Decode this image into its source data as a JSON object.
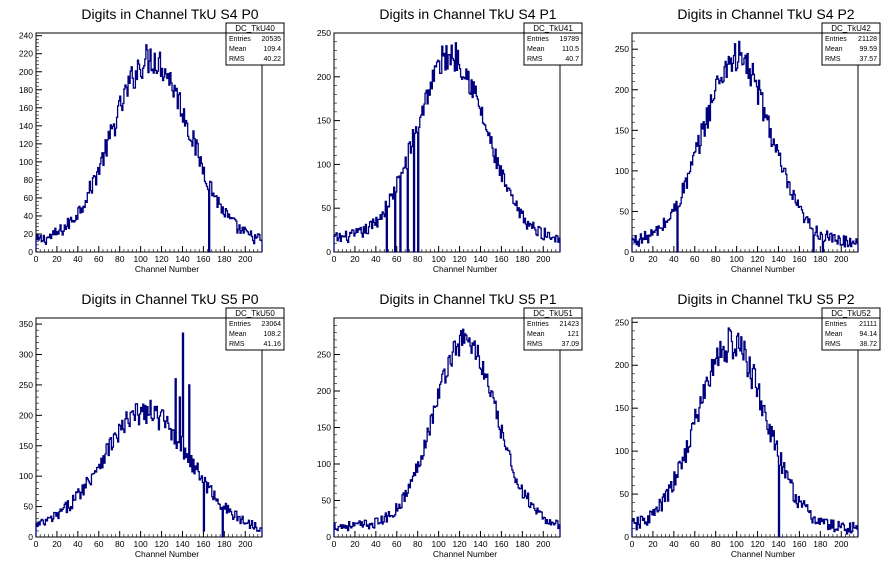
{
  "chart_data": [
    {
      "type": "histogram",
      "title": "Digits in Channel TkU S4 P0",
      "xlabel": "Channel Number",
      "ylabel": "",
      "xlim": [
        0,
        216
      ],
      "ylim": [
        0,
        243
      ],
      "xticks": [
        0,
        20,
        40,
        60,
        80,
        100,
        120,
        140,
        160,
        180,
        200
      ],
      "yticks": [
        0,
        20,
        40,
        60,
        80,
        100,
        120,
        140,
        160,
        180,
        200,
        220,
        240
      ],
      "stats": {
        "name": "DC_TkU40",
        "entries": "20535",
        "mean": "109.4",
        "rms": "40.22"
      },
      "profile": {
        "mu": 110,
        "sigma": 37,
        "peak": 215,
        "base": 10
      },
      "spikes": [
        [
          165,
          0
        ]
      ],
      "noise": 12
    },
    {
      "type": "histogram",
      "title": "Digits in Channel TkU S4 P1",
      "xlabel": "Channel Number",
      "ylabel": "",
      "xlim": [
        0,
        216
      ],
      "ylim": [
        0,
        250
      ],
      "xticks": [
        0,
        20,
        40,
        60,
        80,
        100,
        120,
        140,
        160,
        180,
        200
      ],
      "yticks": [
        0,
        50,
        100,
        150,
        200,
        250
      ],
      "stats": {
        "name": "DC_TkU41",
        "entries": "19789",
        "mean": "110.5",
        "rms": "40.7"
      },
      "profile": {
        "mu": 112,
        "sigma": 33,
        "peak": 225,
        "base": 15
      },
      "spikes": [
        [
          50,
          0
        ],
        [
          58,
          0
        ],
        [
          63,
          0
        ],
        [
          70,
          0
        ],
        [
          76,
          0
        ],
        [
          80,
          0
        ]
      ],
      "noise": 12
    },
    {
      "type": "histogram",
      "title": "Digits in Channel TkU S4 P2",
      "xlabel": "Channel Number",
      "ylabel": "",
      "xlim": [
        0,
        216
      ],
      "ylim": [
        0,
        270
      ],
      "xticks": [
        0,
        20,
        40,
        60,
        80,
        100,
        120,
        140,
        160,
        180,
        200
      ],
      "yticks": [
        0,
        50,
        100,
        150,
        200,
        250
      ],
      "stats": {
        "name": "DC_TkU42",
        "entries": "21128",
        "mean": "99.59",
        "rms": "37.57"
      },
      "profile": {
        "mu": 100,
        "sigma": 32,
        "peak": 240,
        "base": 12
      },
      "spikes": [
        [
          43,
          0
        ],
        [
          173,
          0
        ],
        [
          182,
          0
        ]
      ],
      "noise": 14
    },
    {
      "type": "histogram",
      "title": "Digits in Channel TkU S5 P0",
      "xlabel": "Channel Number",
      "ylabel": "",
      "xlim": [
        0,
        216
      ],
      "ylim": [
        0,
        360
      ],
      "xticks": [
        0,
        20,
        40,
        60,
        80,
        100,
        120,
        140,
        160,
        180,
        200
      ],
      "yticks": [
        0,
        50,
        100,
        150,
        200,
        250,
        300,
        350
      ],
      "stats": {
        "name": "DC_TkU50",
        "entries": "23064",
        "mean": "108.2",
        "rms": "41.16"
      },
      "profile": {
        "mu": 105,
        "sigma": 42,
        "peak": 205,
        "base": 10
      },
      "spikes": [
        [
          140,
          335
        ],
        [
          133,
          260
        ],
        [
          146,
          250
        ],
        [
          137,
          230
        ],
        [
          160,
          10
        ],
        [
          178,
          0
        ]
      ],
      "noise": 14
    },
    {
      "type": "histogram",
      "title": "Digits in Channel TkU S5 P1",
      "xlabel": "Channel Number",
      "ylabel": "",
      "xlim": [
        0,
        216
      ],
      "ylim": [
        0,
        300
      ],
      "xticks": [
        0,
        20,
        40,
        60,
        80,
        100,
        120,
        140,
        160,
        180,
        200
      ],
      "yticks": [
        0,
        50,
        100,
        150,
        200,
        250
      ],
      "stats": {
        "name": "DC_TkU51",
        "entries": "21423",
        "mean": "121",
        "rms": "37.09"
      },
      "profile": {
        "mu": 125,
        "sigma": 30,
        "peak": 270,
        "base": 15
      },
      "spikes": [
        [
          185,
          60
        ]
      ],
      "noise": 12
    },
    {
      "type": "histogram",
      "title": "Digits in Channel TkU S5 P2",
      "xlabel": "Channel Number",
      "ylabel": "",
      "xlim": [
        0,
        216
      ],
      "ylim": [
        0,
        255
      ],
      "xticks": [
        0,
        20,
        40,
        60,
        80,
        100,
        120,
        140,
        160,
        180,
        200
      ],
      "yticks": [
        0,
        50,
        100,
        150,
        200,
        250
      ],
      "stats": {
        "name": "DC_TkU52",
        "entries": "21111",
        "mean": "94.14",
        "rms": "38.72"
      },
      "profile": {
        "mu": 95,
        "sigma": 33,
        "peak": 225,
        "base": 10
      },
      "spikes": [
        [
          140,
          0
        ]
      ],
      "noise": 14
    }
  ],
  "stat_labels": {
    "entries": "Entries",
    "mean": "Mean",
    "rms": "RMS"
  },
  "colors": {
    "line": "#00007f",
    "frame": "#000000",
    "background": "#ffffff"
  }
}
